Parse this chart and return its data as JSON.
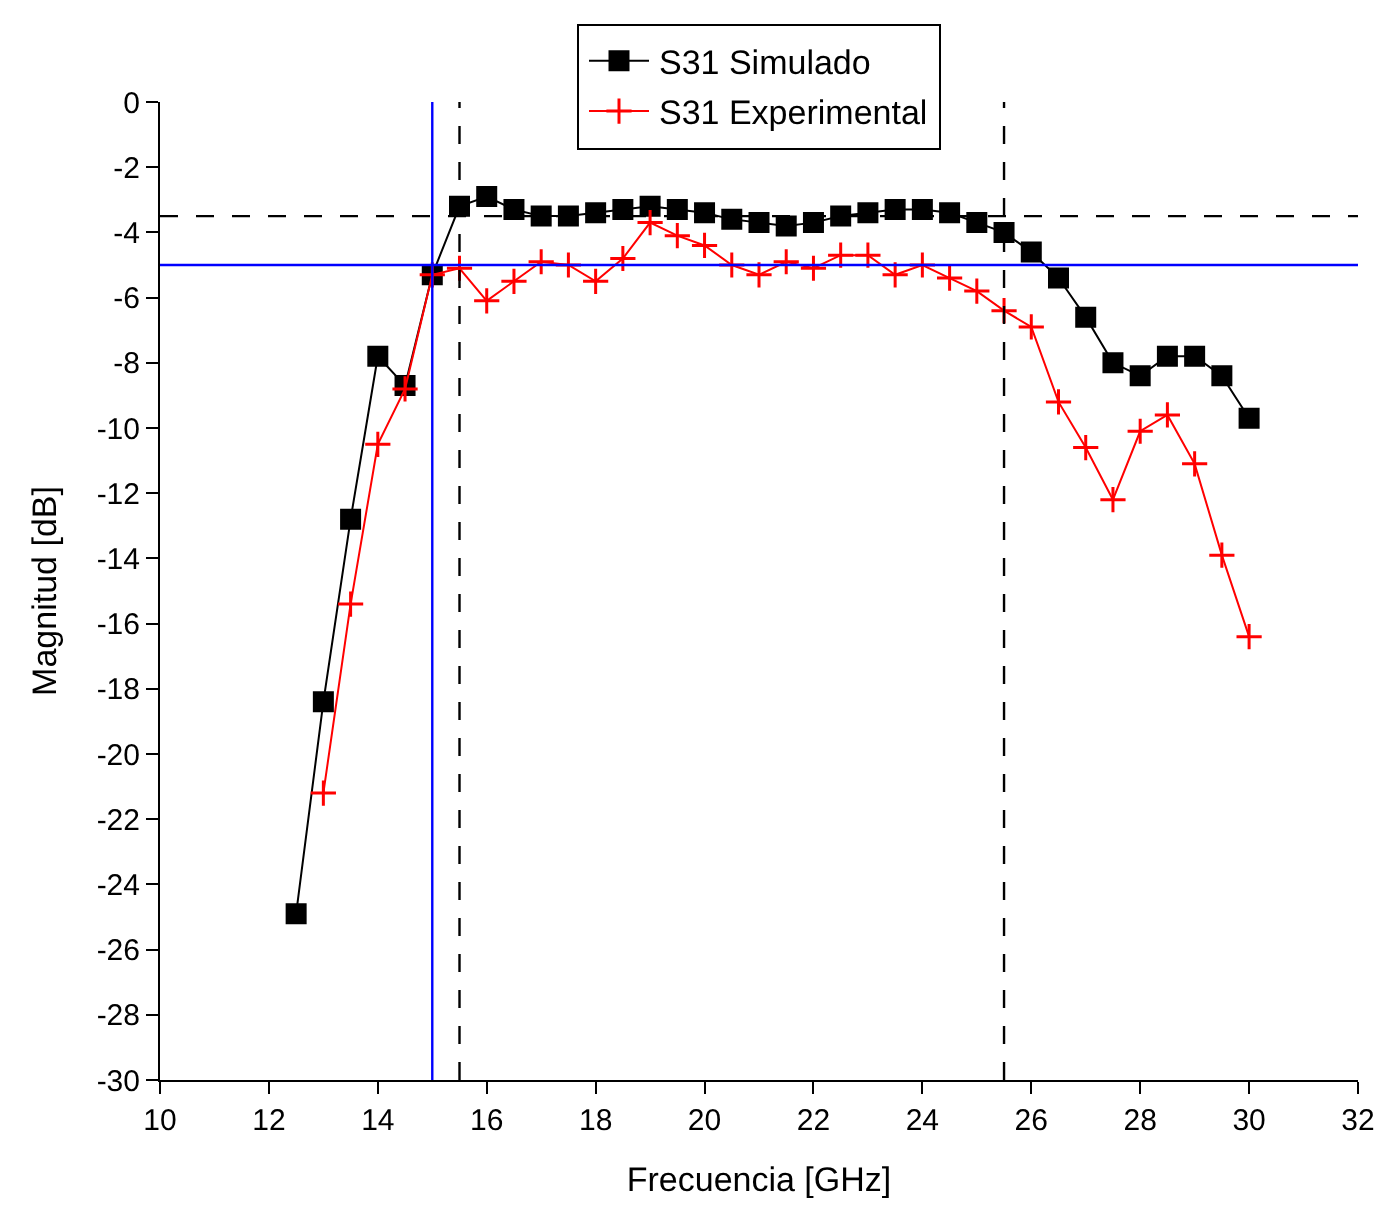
{
  "chart_data": {
    "type": "line",
    "xlabel": "Frecuencia [GHz]",
    "ylabel": "Magnitud [dB]",
    "xlim": [
      10,
      32
    ],
    "xticks": [
      10,
      12,
      14,
      16,
      18,
      20,
      22,
      24,
      26,
      28,
      30,
      32
    ],
    "ylim": [
      -30,
      0
    ],
    "yticks": [
      -30,
      -28,
      -26,
      -24,
      -22,
      -20,
      -18,
      -16,
      -14,
      -12,
      -10,
      -8,
      -6,
      -4,
      -2,
      0
    ],
    "legend": "top",
    "series": [
      {
        "name": "S31 Simulado",
        "color": "#000000",
        "marker": "square",
        "line_style": "solid",
        "x": [
          12.5,
          13,
          13.5,
          14,
          14.5,
          15,
          15.5,
          16,
          16.5,
          17,
          17.5,
          18,
          18.5,
          19,
          19.5,
          20,
          20.5,
          21,
          21.5,
          22,
          22.5,
          23,
          23.5,
          24,
          24.5,
          25,
          25.5,
          26,
          26.5,
          27,
          27.5,
          28,
          28.5,
          29,
          29.5,
          30
        ],
        "values": [
          -24.9,
          -18.4,
          -12.8,
          -7.8,
          -8.7,
          -5.3,
          -3.2,
          -2.9,
          -3.3,
          -3.5,
          -3.5,
          -3.4,
          -3.3,
          -3.2,
          -3.3,
          -3.4,
          -3.6,
          -3.7,
          -3.8,
          -3.7,
          -3.5,
          -3.4,
          -3.3,
          -3.3,
          -3.4,
          -3.7,
          -4.0,
          -4.6,
          -5.4,
          -6.6,
          -8.0,
          -8.4,
          -7.8,
          -7.8,
          -8.4,
          -9.7
        ]
      },
      {
        "name": "S31 Experimental",
        "color": "#ff0000",
        "marker": "cross",
        "line_style": "solid",
        "x": [
          13,
          13.5,
          14,
          14.5,
          15,
          15.5,
          16,
          16.5,
          17,
          17.5,
          18,
          18.5,
          19,
          19.5,
          20,
          20.5,
          21,
          21.5,
          22,
          22.5,
          23,
          23.5,
          24,
          24.5,
          25,
          25.5,
          26,
          26.5,
          27,
          27.5,
          28,
          28.5,
          29,
          29.5,
          30
        ],
        "values": [
          -21.2,
          -15.4,
          -10.5,
          -8.8,
          -5.3,
          -5.1,
          -6.1,
          -5.5,
          -4.9,
          -5.0,
          -5.5,
          -4.8,
          -3.7,
          -4.1,
          -4.4,
          -5.0,
          -5.3,
          -4.9,
          -5.1,
          -4.7,
          -4.7,
          -5.3,
          -5.0,
          -5.4,
          -5.8,
          -6.4,
          -6.9,
          -9.2,
          -10.6,
          -12.2,
          -10.1,
          -9.6,
          -11.1,
          -13.9,
          -16.4
        ]
      }
    ],
    "ref_lines": [
      {
        "axis": "y",
        "value": -3.5,
        "color": "#000000",
        "line_style": "dashed"
      },
      {
        "axis": "y",
        "value": -5,
        "color": "#0000ff",
        "line_style": "solid"
      },
      {
        "axis": "x",
        "value": 15,
        "color": "#0000ff",
        "line_style": "solid"
      },
      {
        "axis": "x",
        "value": 15.5,
        "color": "#000000",
        "line_style": "dashed"
      },
      {
        "axis": "x",
        "value": 25.5,
        "color": "#000000",
        "line_style": "dashed"
      }
    ]
  }
}
